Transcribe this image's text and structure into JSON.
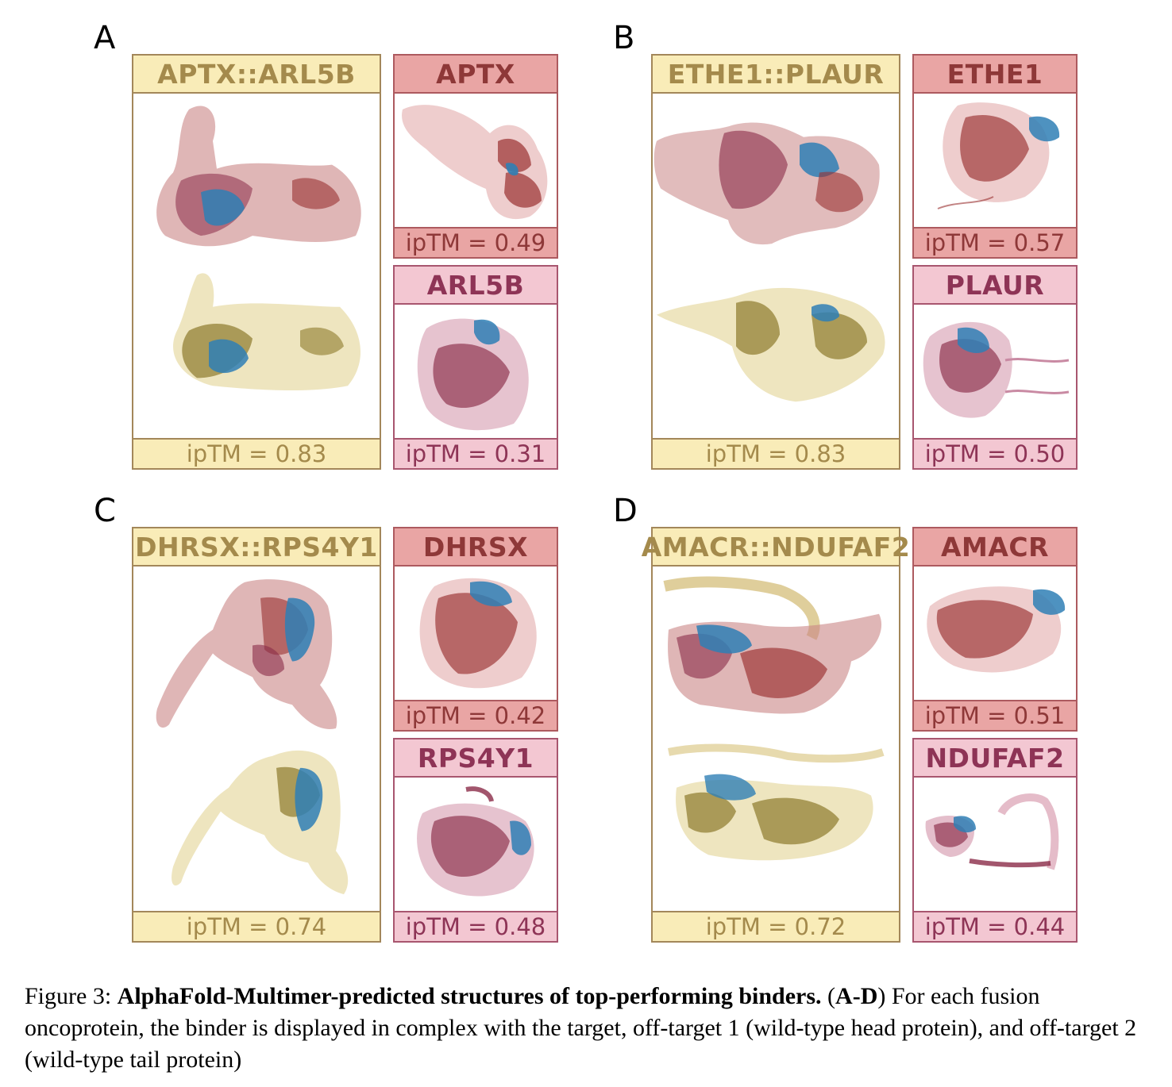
{
  "panels": {
    "A": {
      "letter": "A",
      "fusion": {
        "name": "APTX::ARL5B",
        "iptm": "ipTM = 0.83"
      },
      "head": {
        "name": "APTX",
        "iptm": "ipTM = 0.49"
      },
      "tail": {
        "name": "ARL5B",
        "iptm": "ipTM = 0.31"
      }
    },
    "B": {
      "letter": "B",
      "fusion": {
        "name": "ETHE1::PLAUR",
        "iptm": "ipTM = 0.83"
      },
      "head": {
        "name": "ETHE1",
        "iptm": "ipTM = 0.57"
      },
      "tail": {
        "name": "PLAUR",
        "iptm": "ipTM = 0.50"
      }
    },
    "C": {
      "letter": "C",
      "fusion": {
        "name": "DHRSX::RPS4Y1",
        "iptm": "ipTM = 0.74"
      },
      "head": {
        "name": "DHRSX",
        "iptm": "ipTM = 0.42"
      },
      "tail": {
        "name": "RPS4Y1",
        "iptm": "ipTM = 0.48"
      }
    },
    "D": {
      "letter": "D",
      "fusion": {
        "name": "AMACR::NDUFAF2",
        "iptm": "ipTM = 0.72"
      },
      "head": {
        "name": "AMACR",
        "iptm": "ipTM = 0.51"
      },
      "tail": {
        "name": "NDUFAF2",
        "iptm": "ipTM = 0.44"
      }
    }
  },
  "caption": {
    "label": "Figure 3: ",
    "title": "AlphaFold-Multimer-predicted structures of top-performing binders.",
    "range_open": " (",
    "range": "A-D",
    "range_close": ")",
    "body": " For each fusion oncoprotein, the binder is displayed in complex with the target, off-target 1 (wild-type head protein), and off-target 2 (wild-type tail protein)"
  },
  "colors": {
    "fusion_fill": "#f9ecb8",
    "fusion_border": "#a3875a",
    "head_fill": "#e9a5a4",
    "head_border": "#ad5a5f",
    "tail_fill": "#f3c7d2",
    "tail_border": "#a8566f",
    "binder_blue": "#2f7fb5"
  }
}
